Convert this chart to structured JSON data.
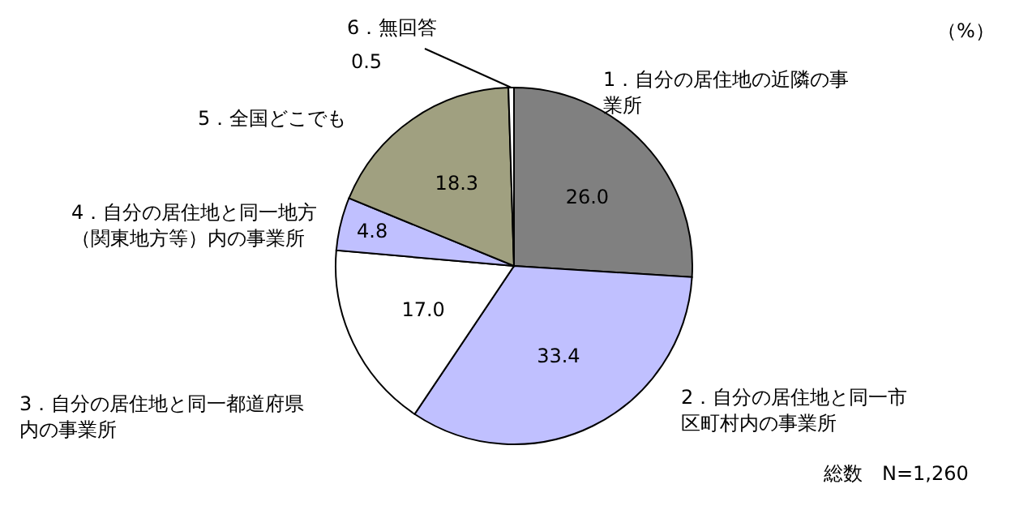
{
  "chart_data": {
    "type": "pie",
    "categories": [
      "1．自分の居住地の近隣の事業所",
      "2．自分の居住地と同一市区町村内の事業所",
      "3．自分の居住地と同一都道府県内の事業所",
      "4．自分の居住地と同一地方（関東地方等）内の事業所",
      "5．全国どこでも",
      "6．無回答"
    ],
    "values": [
      26.0,
      33.4,
      17.0,
      4.8,
      18.3,
      0.5
    ],
    "colors": [
      "#808080",
      "#c0c0ff",
      "#ffffff",
      "#c0c0ff",
      "#a0a080",
      "#ffffff"
    ],
    "value_labels": [
      "26.0",
      "33.4",
      "17.0",
      "4.8",
      "18.3",
      "0.5"
    ],
    "annotations": [
      "（%）",
      "総数　N=1,260"
    ]
  }
}
